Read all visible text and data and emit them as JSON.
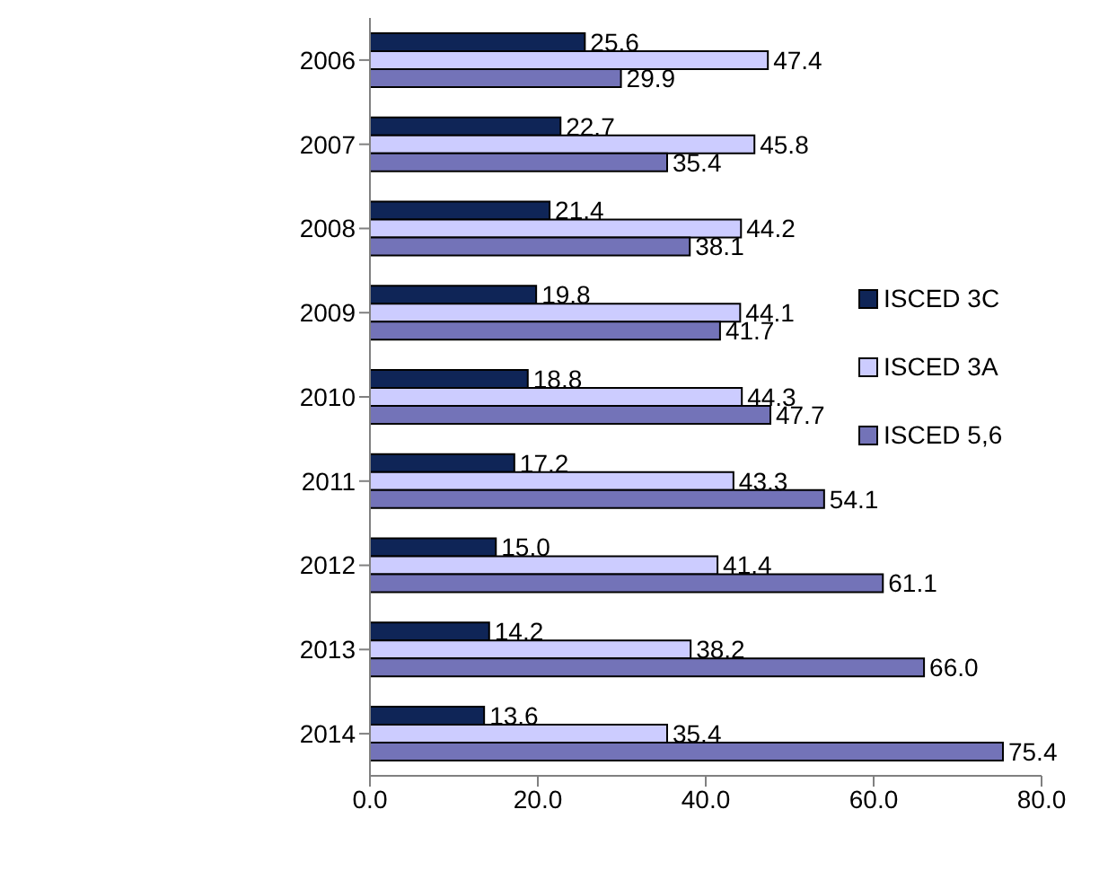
{
  "chart_data": {
    "type": "bar",
    "orientation": "horizontal",
    "categories": [
      "2006",
      "2007",
      "2008",
      "2009",
      "2010",
      "2011",
      "2012",
      "2013",
      "2014"
    ],
    "series": [
      {
        "name": "ISCED 3C",
        "color": "#0f2557",
        "values": [
          25.6,
          22.7,
          21.4,
          19.8,
          18.8,
          17.2,
          15.0,
          14.2,
          13.6
        ],
        "value_labels": [
          "25.6",
          "22.7",
          "21.4",
          "19.8",
          "18.8",
          "17.2",
          "15.0",
          "14.2",
          "13.6"
        ]
      },
      {
        "name": "ISCED 3A",
        "color": "#ccccff",
        "values": [
          47.4,
          45.8,
          44.2,
          44.1,
          44.3,
          43.3,
          41.4,
          38.2,
          35.4
        ],
        "value_labels": [
          "47.4",
          "45.8",
          "44.2",
          "44.1",
          "44.3",
          "43.3",
          "41.4",
          "38.2",
          "35.4"
        ]
      },
      {
        "name": "ISCED 5,6",
        "color": "#7373b8",
        "values": [
          29.9,
          35.4,
          38.1,
          41.7,
          47.7,
          54.1,
          61.1,
          66.0,
          75.4
        ],
        "value_labels": [
          "29.9",
          "35.4",
          "38.1",
          "41.7",
          "47.7",
          "54.1",
          "61.1",
          "66.0",
          "75.4"
        ]
      }
    ],
    "xlim": [
      0,
      80
    ],
    "xticks": [
      {
        "value": 0,
        "label": "0.0"
      },
      {
        "value": 20,
        "label": "20.0"
      },
      {
        "value": 40,
        "label": "40.0"
      },
      {
        "value": 60,
        "label": "60.0"
      },
      {
        "value": 80,
        "label": "80.0"
      }
    ],
    "grid": false,
    "legend": "right"
  }
}
